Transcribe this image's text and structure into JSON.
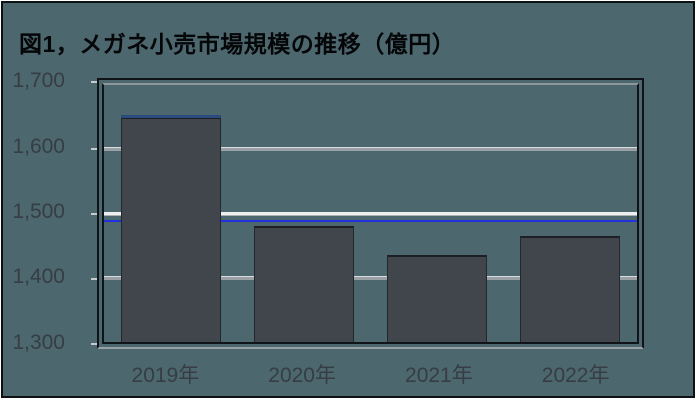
{
  "title": "図1，メガネ小売市場規模の推移（億円）",
  "colors": {
    "background": "#4c676e",
    "bar": "#41464c",
    "frame": "#0e1114",
    "grid_gray": "#9aa1a6",
    "grid_white": "#eef0f1",
    "reference_line_blue": "#2231dd",
    "bar_cap_blue": "#2b4a7d",
    "label_text": "#363d44",
    "title_text": "#050608"
  },
  "y_axis": {
    "tick_labels": [
      "1,700",
      "1,600",
      "1,500",
      "1,400",
      "1,300"
    ],
    "min": 1300,
    "max": 1700,
    "step": 100
  },
  "chart_data": {
    "type": "bar",
    "title": "図1，メガネ小売市場規模の推移（億円）",
    "categories": [
      "2019年",
      "2020年",
      "2021年",
      "2022年"
    ],
    "values": [
      1650,
      1480,
      1435,
      1465
    ],
    "ylim": [
      1300,
      1700
    ],
    "yticks": [
      1300,
      1400,
      1500,
      1600,
      1700
    ],
    "xlabel": "",
    "ylabel": "",
    "legend": "none",
    "grid": "horizontal",
    "reference_line_y": 1490,
    "highlighted_bar_top": "2019年"
  }
}
